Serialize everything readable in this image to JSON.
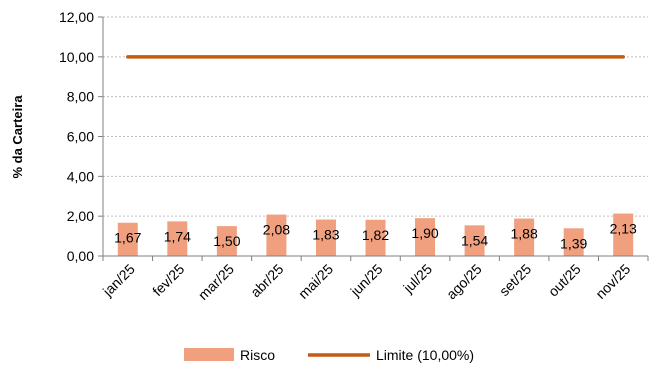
{
  "chart_data": {
    "type": "bar",
    "title": "",
    "xlabel": "",
    "ylabel": "% da Carteira",
    "ylim": [
      0,
      12
    ],
    "yticks": [
      "0,00",
      "2,00",
      "4,00",
      "6,00",
      "8,00",
      "10,00",
      "12,00"
    ],
    "categories": [
      "jan/25",
      "fev/25",
      "mar/25",
      "abr/25",
      "mai/25",
      "jun/25",
      "jul/25",
      "ago/25",
      "set/25",
      "out/25",
      "nov/25"
    ],
    "series": [
      {
        "name": "Risco",
        "kind": "bar",
        "color": "#F0A07E",
        "values": [
          1.67,
          1.74,
          1.5,
          2.08,
          1.83,
          1.82,
          1.9,
          1.54,
          1.88,
          1.39,
          2.13
        ],
        "labels": [
          "1,67",
          "1,74",
          "1,50",
          "2,08",
          "1,83",
          "1,82",
          "1,90",
          "1,54",
          "1,88",
          "1,39",
          "2,13"
        ]
      },
      {
        "name": "Limite (10,00%)",
        "kind": "line",
        "color": "#C55A11",
        "values": [
          10,
          10,
          10,
          10,
          10,
          10,
          10,
          10,
          10,
          10,
          10
        ]
      }
    ],
    "grid": true,
    "legend_position": "bottom"
  }
}
